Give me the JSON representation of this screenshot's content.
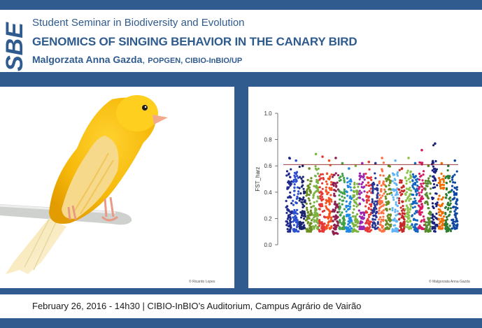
{
  "header": {
    "logo_text": "SBE",
    "series": "Student Seminar in Biodiversity and Evolution",
    "title": "GENOMICS OF SINGING BEHAVIOR IN THE CANARY BIRD",
    "author": "Malgorzata Anna Gazda",
    "affiliation": "POPGEN, CIBIO-InBIO/UP"
  },
  "photo": {
    "subject": "yellow canary on a perch",
    "credit": "© Ricardo Lopes"
  },
  "plot_credit": "© Malgorzata Anna Gazda",
  "footer": {
    "text": "February 26, 2016 - 14h30 | CIBIO-InBIO’s Auditorium, Campus Agrário de Vairão"
  },
  "colors": {
    "brand": "#2f5b8e",
    "threshold": "#8b1a1a"
  },
  "chart_data": {
    "type": "scatter",
    "ylabel": "FST_harz",
    "ylim": [
      0.0,
      1.0
    ],
    "yticks": [
      "0.0",
      "0.2",
      "0.4",
      "0.6",
      "0.8",
      "1.0"
    ],
    "threshold": 0.61,
    "groups": [
      {
        "color": "#1f2a8a",
        "min": 0.1,
        "max": 0.66
      },
      {
        "color": "#2b4fcf",
        "min": 0.1,
        "max": 0.64
      },
      {
        "color": "#1a2470",
        "min": 0.12,
        "max": 0.6
      },
      {
        "color": "#6b8e23",
        "min": 0.1,
        "max": 0.58
      },
      {
        "color": "#7cb342",
        "min": 0.12,
        "max": 0.69
      },
      {
        "color": "#e53935",
        "min": 0.1,
        "max": 0.67
      },
      {
        "color": "#f4511e",
        "min": 0.12,
        "max": 0.64
      },
      {
        "color": "#8e1f4f",
        "min": 0.08,
        "max": 0.66
      },
      {
        "color": "#43a047",
        "min": 0.12,
        "max": 0.62
      },
      {
        "color": "#1e88e5",
        "min": 0.1,
        "max": 0.58
      },
      {
        "color": "#7cb342",
        "min": 0.1,
        "max": 0.6
      },
      {
        "color": "#9c27b0",
        "min": 0.12,
        "max": 0.62
      },
      {
        "color": "#e53935",
        "min": 0.1,
        "max": 0.63
      },
      {
        "color": "#283593",
        "min": 0.12,
        "max": 0.62
      },
      {
        "color": "#ff7043",
        "min": 0.1,
        "max": 0.66
      },
      {
        "color": "#6b8e23",
        "min": 0.12,
        "max": 0.6
      },
      {
        "color": "#64b5f6",
        "min": 0.1,
        "max": 0.64
      },
      {
        "color": "#c62828",
        "min": 0.1,
        "max": 0.58
      },
      {
        "color": "#8bc34a",
        "min": 0.12,
        "max": 0.66
      },
      {
        "color": "#1565c0",
        "min": 0.1,
        "max": 0.62
      },
      {
        "color": "#d81b60",
        "min": 0.12,
        "max": 0.72
      },
      {
        "color": "#558b2f",
        "min": 0.1,
        "max": 0.6
      },
      {
        "color": "#1a237e",
        "min": 0.1,
        "max": 0.77
      },
      {
        "color": "#ef6c00",
        "min": 0.12,
        "max": 0.62
      },
      {
        "color": "#2e7d32",
        "min": 0.1,
        "max": 0.6
      },
      {
        "color": "#0d47a1",
        "min": 0.12,
        "max": 0.64
      }
    ]
  }
}
